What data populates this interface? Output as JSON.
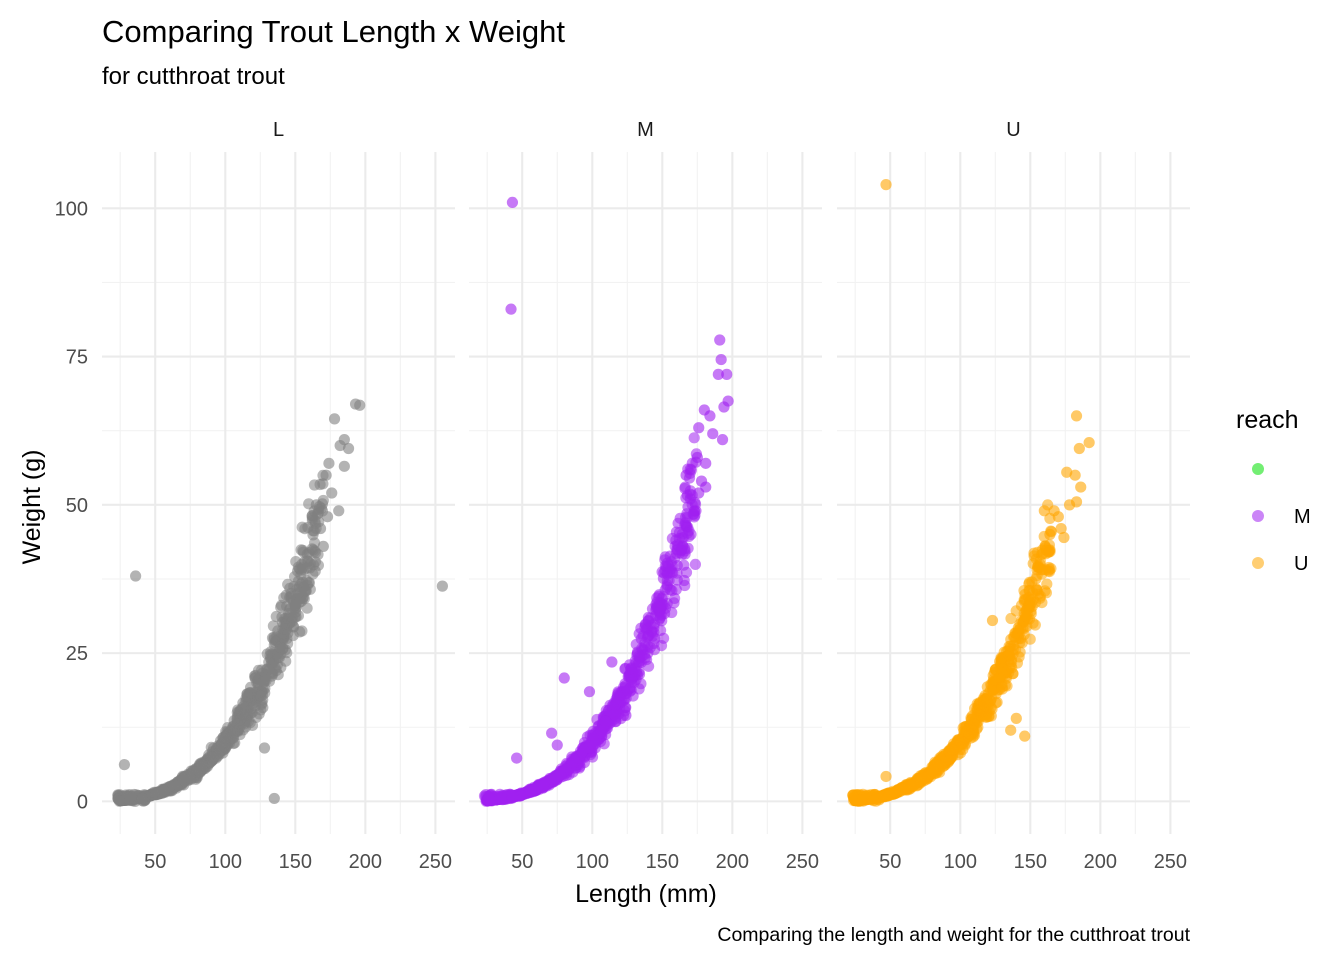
{
  "chart_data": {
    "type": "scatter",
    "title": "Comparing Trout Length x Weight",
    "subtitle": "for cutthroat trout",
    "caption": "Comparing the length and weight for the cutthroat trout",
    "xlabel": "Length (mm)",
    "ylabel": "Weight (g)",
    "xlim": [
      12,
      264
    ],
    "ylim": [
      -5.5,
      109.5
    ],
    "x_ticks": [
      50,
      100,
      150,
      200,
      250
    ],
    "y_ticks": [
      0,
      25,
      50,
      75,
      100
    ],
    "grid": true,
    "legend": {
      "title": "reach",
      "position": "right",
      "entries": [
        {
          "label": "",
          "color": "#00e000"
        },
        {
          "label": "M",
          "color": "#a020f0"
        },
        {
          "label": "U",
          "color": "#ffa500"
        }
      ]
    },
    "facets": [
      {
        "label": "L",
        "color": "#808080",
        "trend_range": [
          25,
          170
        ],
        "outliers": [
          {
            "x": 28,
            "y": 6.2
          },
          {
            "x": 36,
            "y": 38
          },
          {
            "x": 128,
            "y": 9
          },
          {
            "x": 135,
            "y": 0.5
          },
          {
            "x": 255,
            "y": 36.3
          },
          {
            "x": 165,
            "y": 50
          },
          {
            "x": 172,
            "y": 55
          },
          {
            "x": 174,
            "y": 57
          },
          {
            "x": 178,
            "y": 64.5
          },
          {
            "x": 182,
            "y": 60
          },
          {
            "x": 185,
            "y": 56.5
          },
          {
            "x": 185,
            "y": 61
          },
          {
            "x": 188,
            "y": 59.5
          },
          {
            "x": 193,
            "y": 67
          },
          {
            "x": 196,
            "y": 66.8
          },
          {
            "x": 181,
            "y": 49
          },
          {
            "x": 173,
            "y": 48
          },
          {
            "x": 176,
            "y": 52
          },
          {
            "x": 168,
            "y": 46
          },
          {
            "x": 170,
            "y": 43
          }
        ]
      },
      {
        "label": "M",
        "color": "#a020f0",
        "trend_range": [
          25,
          175
        ],
        "outliers": [
          {
            "x": 43,
            "y": 101
          },
          {
            "x": 42,
            "y": 83
          },
          {
            "x": 46,
            "y": 7.3
          },
          {
            "x": 80,
            "y": 20.8
          },
          {
            "x": 71,
            "y": 11.5
          },
          {
            "x": 75,
            "y": 9.5
          },
          {
            "x": 98,
            "y": 18.5
          },
          {
            "x": 124,
            "y": 14.5
          },
          {
            "x": 114,
            "y": 23.5
          },
          {
            "x": 191,
            "y": 77.8
          },
          {
            "x": 192,
            "y": 74.5
          },
          {
            "x": 190,
            "y": 72
          },
          {
            "x": 196,
            "y": 72
          },
          {
            "x": 197,
            "y": 67.5
          },
          {
            "x": 194,
            "y": 66.5
          },
          {
            "x": 180,
            "y": 66
          },
          {
            "x": 184,
            "y": 65
          },
          {
            "x": 186,
            "y": 62
          },
          {
            "x": 193,
            "y": 61
          },
          {
            "x": 176,
            "y": 63
          },
          {
            "x": 175,
            "y": 58
          },
          {
            "x": 181,
            "y": 57
          },
          {
            "x": 170,
            "y": 56
          },
          {
            "x": 167,
            "y": 55
          },
          {
            "x": 178,
            "y": 54
          },
          {
            "x": 181,
            "y": 53
          },
          {
            "x": 176,
            "y": 52
          },
          {
            "x": 170,
            "y": 51
          },
          {
            "x": 174,
            "y": 49
          }
        ]
      },
      {
        "label": "U",
        "color": "#ffa500",
        "trend_range": [
          25,
          165
        ],
        "outliers": [
          {
            "x": 47,
            "y": 104
          },
          {
            "x": 47,
            "y": 4.2
          },
          {
            "x": 123,
            "y": 30.5
          },
          {
            "x": 136,
            "y": 12
          },
          {
            "x": 140,
            "y": 14
          },
          {
            "x": 146,
            "y": 11
          },
          {
            "x": 183,
            "y": 65
          },
          {
            "x": 185,
            "y": 59.5
          },
          {
            "x": 192,
            "y": 60.5
          },
          {
            "x": 176,
            "y": 55.5
          },
          {
            "x": 182,
            "y": 55
          },
          {
            "x": 186,
            "y": 53
          },
          {
            "x": 178,
            "y": 50
          },
          {
            "x": 183,
            "y": 50.5
          },
          {
            "x": 167,
            "y": 49
          },
          {
            "x": 170,
            "y": 48
          },
          {
            "x": 160,
            "y": 49
          },
          {
            "x": 172,
            "y": 46
          },
          {
            "x": 174,
            "y": 44.5
          },
          {
            "x": 164,
            "y": 45
          },
          {
            "x": 163,
            "y": 42
          }
        ]
      }
    ]
  }
}
